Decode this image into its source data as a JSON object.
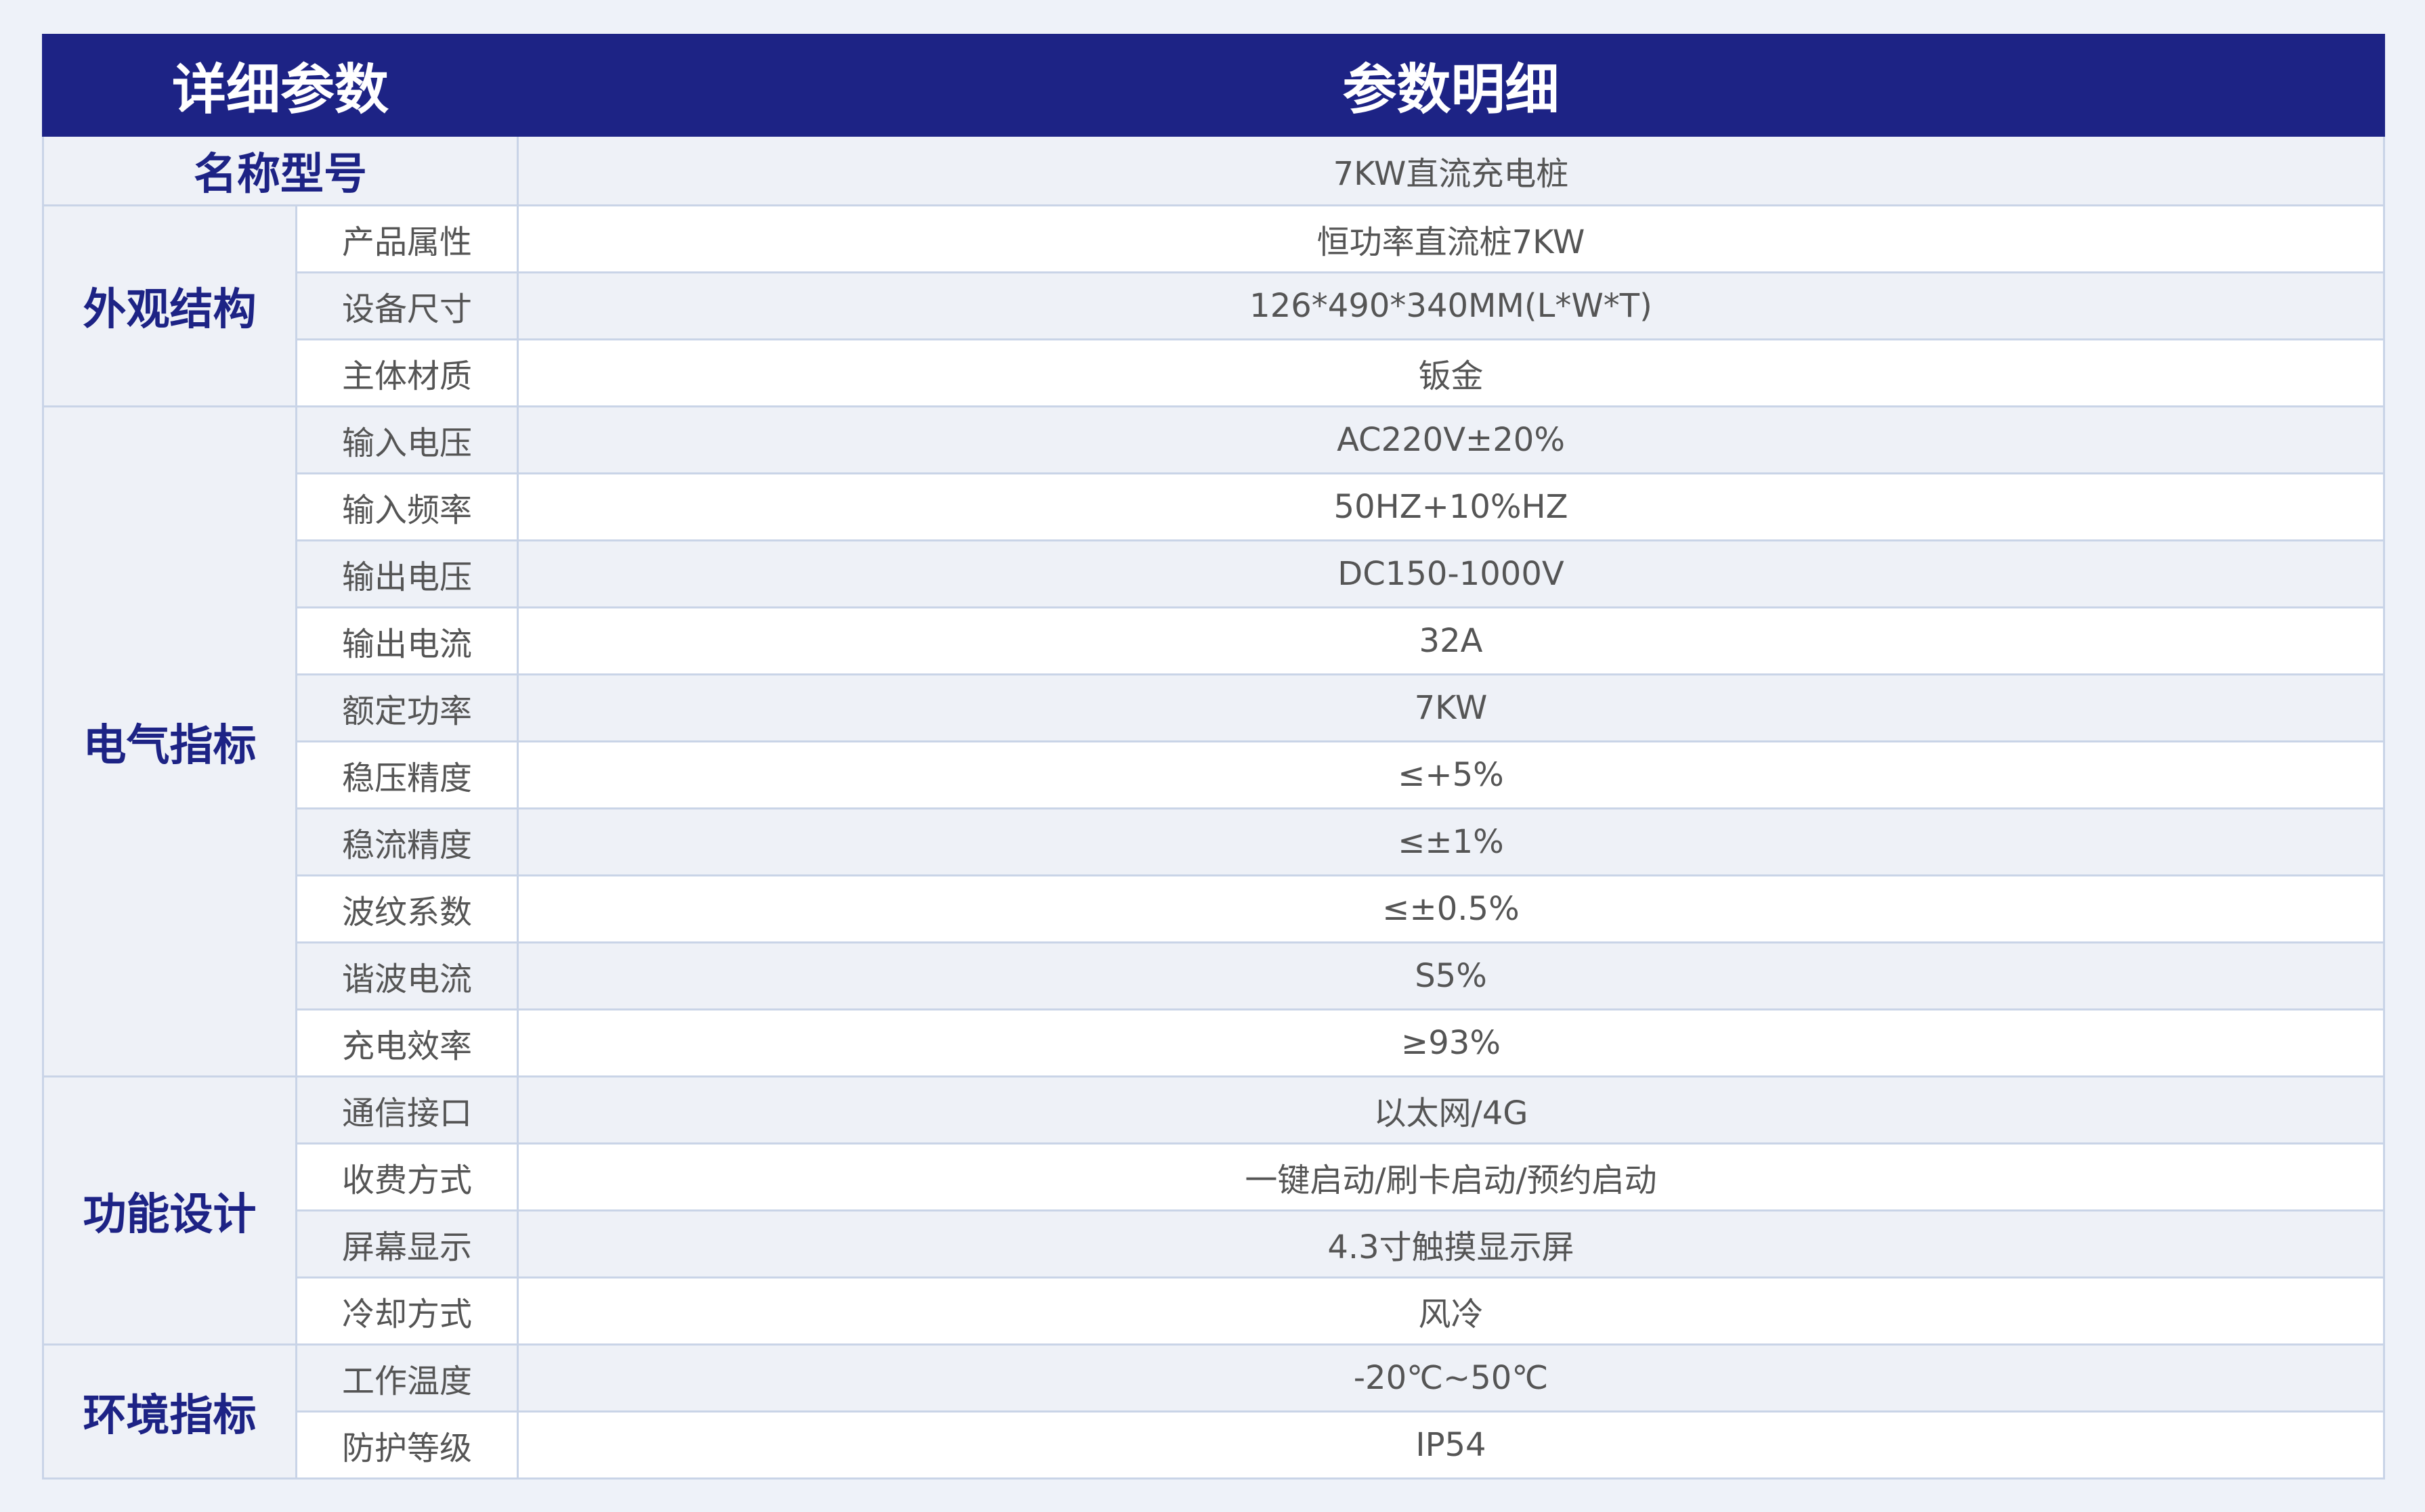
{
  "header": {
    "col1": "详细参数",
    "col2": "参数明细"
  },
  "name_row": {
    "label": "名称型号",
    "value": "7KW直流充电桩"
  },
  "groups": [
    {
      "label": "外观结构",
      "rows": [
        {
          "label": "产品属性",
          "value": "恒功率直流桩7KW"
        },
        {
          "label": "设备尺寸",
          "value": "126*490*340MM(L*W*T)"
        },
        {
          "label": "主体材质",
          "value": "钣金"
        }
      ]
    },
    {
      "label": "电气指标",
      "rows": [
        {
          "label": "输入电压",
          "value": "AC220V±20%"
        },
        {
          "label": "输入频率",
          "value": "50HZ+10%HZ"
        },
        {
          "label": "输出电压",
          "value": "DC150-1000V"
        },
        {
          "label": "输出电流",
          "value": "32A"
        },
        {
          "label": "额定功率",
          "value": "7KW"
        },
        {
          "label": "稳压精度",
          "value": "≤+5%"
        },
        {
          "label": "稳流精度",
          "value": "≤±1%"
        },
        {
          "label": "波纹系数",
          "value": "≤±0.5%"
        },
        {
          "label": "谐波电流",
          "value": "S5%"
        },
        {
          "label": "充电效率",
          "value": "≥93%"
        }
      ]
    },
    {
      "label": "功能设计",
      "rows": [
        {
          "label": "通信接口",
          "value": "以太网/4G"
        },
        {
          "label": "收费方式",
          "value": "一键启动/刷卡启动/预约启动"
        },
        {
          "label": "屏幕显示",
          "value": "4.3寸触摸显示屏"
        },
        {
          "label": "冷却方式",
          "value": "风冷"
        }
      ]
    },
    {
      "label": "环境指标",
      "rows": [
        {
          "label": "工作温度",
          "value": "-20℃~50℃"
        },
        {
          "label": "防护等级",
          "value": "IP54"
        }
      ]
    }
  ]
}
